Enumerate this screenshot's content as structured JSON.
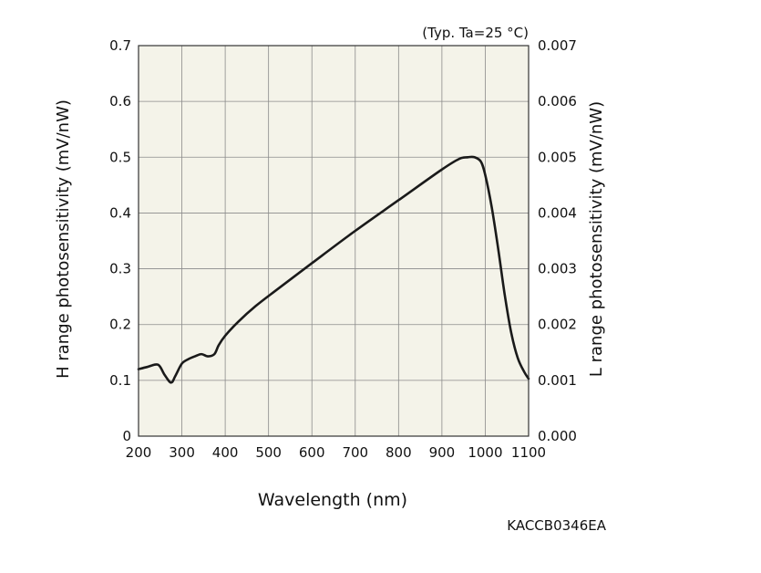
{
  "chart_data": {
    "type": "line",
    "title": "",
    "condition_note": "(Typ. Ta=25 °C)",
    "xlabel": "Wavelength (nm)",
    "ylabel_left": "H range photosensitivity (mV/nW)",
    "ylabel_right": "L range photosensitivity (mV/nW)",
    "xlim": [
      200,
      1100
    ],
    "ylim_left": [
      0,
      0.7
    ],
    "ylim_right": [
      0,
      0.007
    ],
    "x_ticks": [
      "200",
      "300",
      "400",
      "500",
      "600",
      "700",
      "800",
      "900",
      "1000",
      "1100"
    ],
    "y_left_ticks": [
      "0",
      "0.1",
      "0.2",
      "0.3",
      "0.4",
      "0.5",
      "0.6",
      "0.7"
    ],
    "y_right_ticks": [
      "0.000",
      "0.001",
      "0.002",
      "0.003",
      "0.004",
      "0.005",
      "0.006",
      "0.007"
    ],
    "grid": true,
    "plot_background": "#f4f3e9",
    "line_color": "#1a1a1a",
    "series": [
      {
        "x": [
          200,
          220,
          245,
          260,
          275,
          285,
          300,
          315,
          330,
          345,
          360,
          375,
          385,
          400,
          430,
          470,
          520,
          600,
          700,
          800,
          900,
          940,
          960,
          975,
          990,
          1000,
          1015,
          1030,
          1045,
          1060,
          1075,
          1090,
          1100
        ],
        "y": [
          0.12,
          0.124,
          0.128,
          0.11,
          0.096,
          0.108,
          0.13,
          0.138,
          0.143,
          0.147,
          0.143,
          0.147,
          0.163,
          0.18,
          0.205,
          0.233,
          0.263,
          0.31,
          0.368,
          0.423,
          0.478,
          0.497,
          0.5,
          0.5,
          0.492,
          0.468,
          0.41,
          0.335,
          0.253,
          0.185,
          0.14,
          0.115,
          0.103
        ]
      }
    ],
    "footer_code": "KACCB0346EA"
  }
}
